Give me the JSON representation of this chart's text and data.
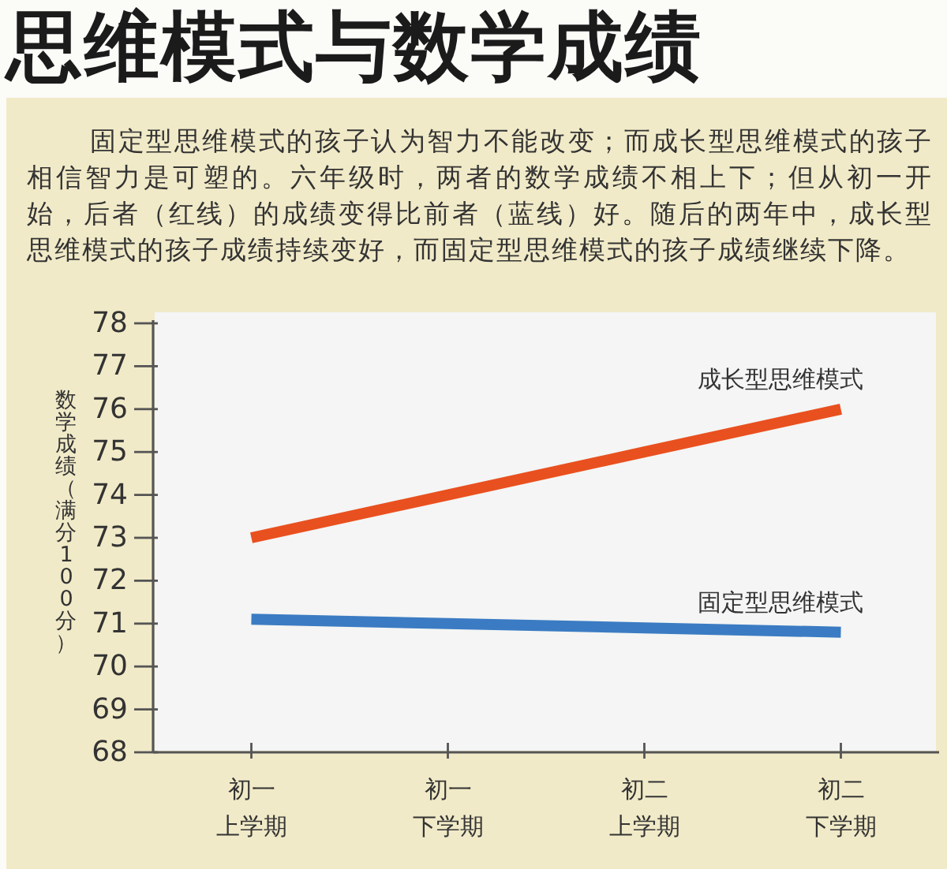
{
  "chart_data": {
    "type": "line",
    "title": "思维模式与数学成绩",
    "subtitle": "固定型思维模式的孩子认为智力不能改变；而成长型思维模式的孩子相信智力是可塑的。六年级时，两者的数学成绩不相上下；但从初一开始，后者（红线）的成绩变得比前者（蓝线）好。随后的两年中，成长型思维模式的孩子成绩持续变好，而固定型思维模式的孩子成绩继续下降。",
    "ylabel": "数学成绩（满分100分）",
    "categories": [
      "初一上学期",
      "初一下学期",
      "初二上学期",
      "初二下学期"
    ],
    "series": [
      {
        "name": "成长型思维模式",
        "color": "#e9501f",
        "values": [
          73,
          74,
          75,
          76
        ]
      },
      {
        "name": "固定型思维模式",
        "color": "#3b7bc3",
        "values": [
          71.1,
          71.0,
          70.9,
          70.8
        ]
      }
    ],
    "ylim": [
      68,
      78
    ],
    "yticks": [
      68,
      69,
      70,
      71,
      72,
      73,
      74,
      75,
      76,
      77,
      78
    ],
    "line_style": "solid"
  }
}
